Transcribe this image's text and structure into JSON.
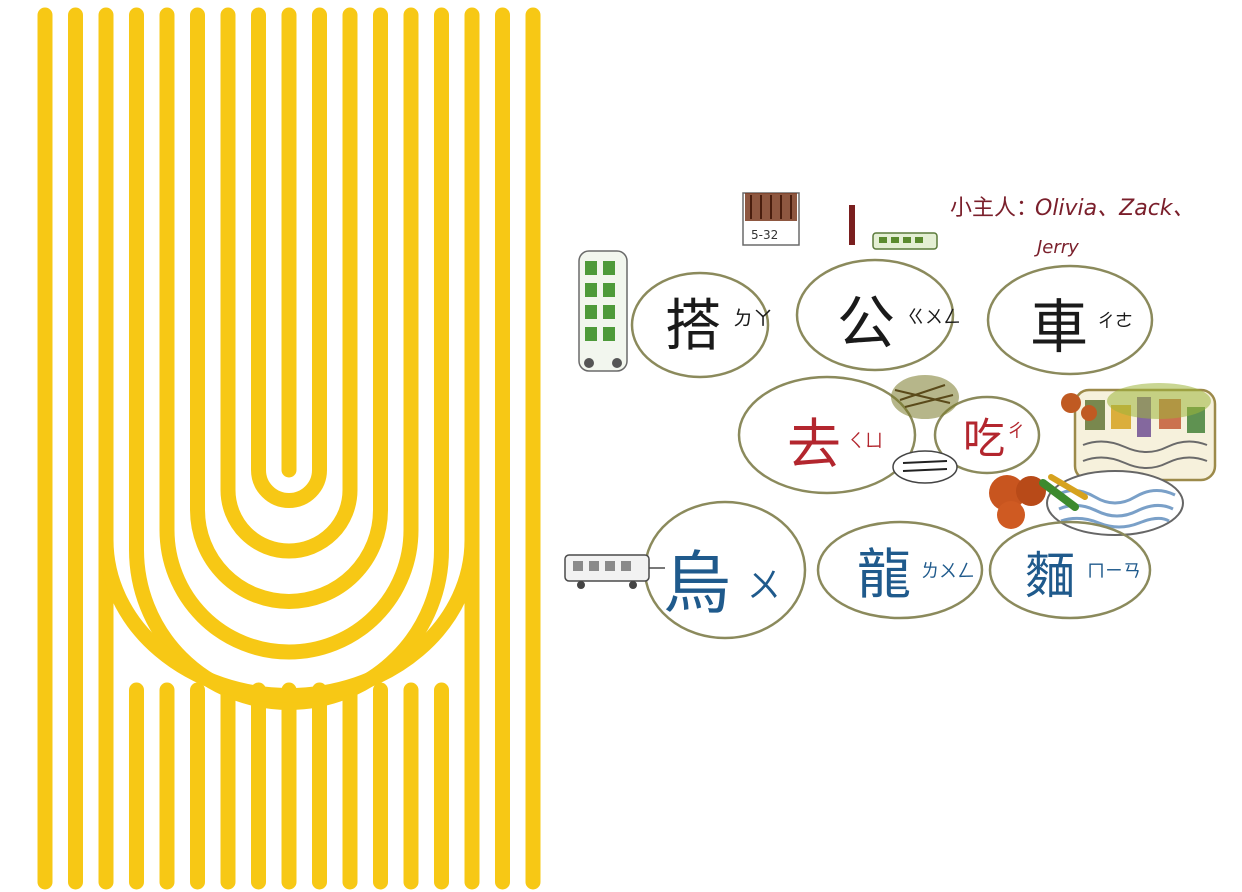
{
  "artwork": {
    "noodle_stripe_color": "#f7c815",
    "background_color": "#ffffff"
  },
  "drawing": {
    "hosts_label": "小主人：",
    "hosts_names_line1": "Olivia、Zack、",
    "hosts_names_line2": "Jerry",
    "bus_number": "5-32",
    "line1": {
      "char1": "搭",
      "zhuyin1": "ㄉㄚ",
      "char2": "公",
      "zhuyin2": "ㄍㄨㄥ",
      "char3": "車",
      "zhuyin3": "ㄔㄜ"
    },
    "line2": {
      "char1": "去",
      "zhuyin1": "ㄑㄩ",
      "char2": "吃",
      "zhuyin2": "ㄔ"
    },
    "line3": {
      "char1": "烏",
      "zhuyin1": "ㄨ",
      "char2": "龍",
      "zhuyin2": "ㄌㄨㄥ",
      "char3": "麵",
      "zhuyin3": "ㄇㄧㄢ"
    },
    "colors": {
      "maroon": "#7a1f2b",
      "black": "#1a1a1a",
      "red": "#b3262e",
      "blue": "#1f5a8c",
      "bubble_outline": "#8b8a5c",
      "green": "#3c8a2e"
    }
  }
}
